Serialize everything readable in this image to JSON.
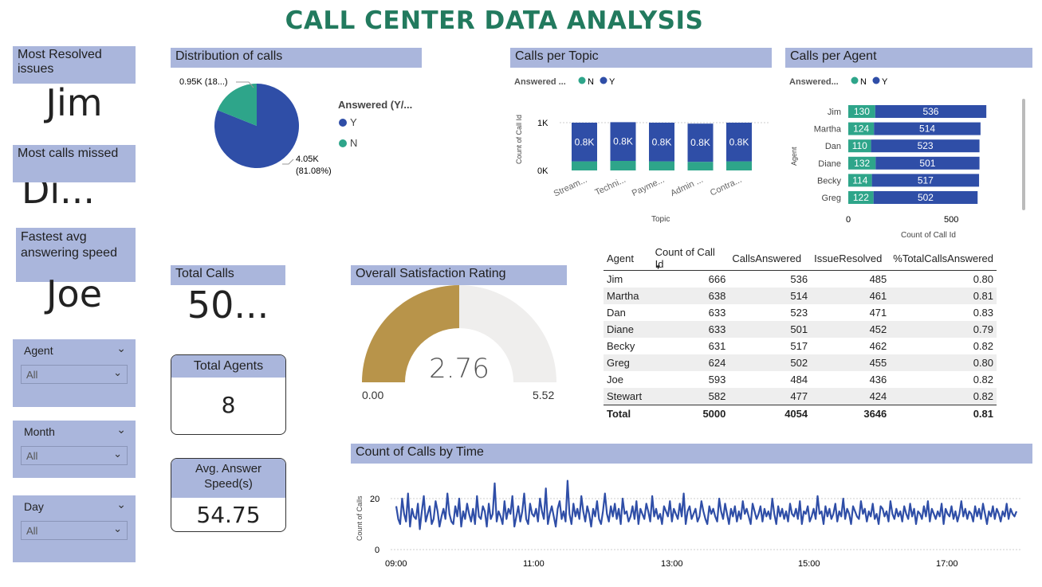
{
  "title": "CALL CENTER DATA ANALYSIS",
  "kpis": {
    "most_resolved_label": "Most Resolved issues",
    "most_resolved_value": "Jim",
    "most_missed_label": "Most calls missed",
    "most_missed_value": "Di...",
    "fastest_label": "Fastest avg answering speed",
    "fastest_value": "Joe",
    "total_calls_label": "Total Calls",
    "total_calls_value": "50...",
    "total_agents_label": "Total Agents",
    "total_agents_value": "8",
    "avg_speed_label": "Avg. Answer Speed(s)",
    "avg_speed_value": "54.75"
  },
  "slicers": [
    {
      "label": "Agent",
      "value": "All"
    },
    {
      "label": "Month",
      "value": "All"
    },
    {
      "label": "Day",
      "value": "All"
    }
  ],
  "colors": {
    "N": "#2ea58a",
    "Y": "#2f4ea7",
    "header": "#aab6dc",
    "title": "#227a5e",
    "gauge": "#b8944a"
  },
  "pie": {
    "title": "Distribution of calls",
    "legend_title": "Answered (Y/...",
    "legend": [
      "Y",
      "N"
    ],
    "label_n": "0.95K (18...)",
    "label_y": "4.05K",
    "label_y_pct": "(81.08%)"
  },
  "topic": {
    "title": "Calls per Topic",
    "legend_title": "Answered ...",
    "legend": [
      "N",
      "Y"
    ],
    "ylabel": "Count of Call Id",
    "xlabel": "Topic",
    "yticks": [
      "1K",
      "0K"
    ],
    "categories": [
      "Stream...",
      "Techni...",
      "Payme...",
      "Admin ...",
      "Contra..."
    ],
    "y_label": "0.8K"
  },
  "agent_chart": {
    "title": "Calls per Agent",
    "legend_title": "Answered...",
    "legend": [
      "N",
      "Y"
    ],
    "ylabel": "Agent",
    "xlabel": "Count of Call Id",
    "xticks": [
      "0",
      "500"
    ]
  },
  "gauge": {
    "title": "Overall Satisfaction Rating",
    "value": "2.76",
    "min": "0.00",
    "max": "5.52"
  },
  "table": {
    "columns": [
      "Agent",
      "Count of Call Id",
      "CallsAnswered",
      "IssueResolved",
      "%TotalCallsAnswered"
    ],
    "rows": [
      [
        "Jim",
        "666",
        "536",
        "485",
        "0.80"
      ],
      [
        "Martha",
        "638",
        "514",
        "461",
        "0.81"
      ],
      [
        "Dan",
        "633",
        "523",
        "471",
        "0.83"
      ],
      [
        "Diane",
        "633",
        "501",
        "452",
        "0.79"
      ],
      [
        "Becky",
        "631",
        "517",
        "462",
        "0.82"
      ],
      [
        "Greg",
        "624",
        "502",
        "455",
        "0.80"
      ],
      [
        "Joe",
        "593",
        "484",
        "436",
        "0.82"
      ],
      [
        "Stewart",
        "582",
        "477",
        "424",
        "0.82"
      ]
    ],
    "total": [
      "Total",
      "5000",
      "4054",
      "3646",
      "0.81"
    ]
  },
  "time_chart": {
    "title": "Count of Calls by Time",
    "ylabel": "Count of Calls",
    "yticks": [
      "20",
      "0"
    ],
    "xticks": [
      "09:00",
      "11:00",
      "13:00",
      "15:00",
      "17:00"
    ]
  },
  "chart_data": [
    {
      "type": "pie",
      "title": "Distribution of calls",
      "categories": [
        "Y",
        "N"
      ],
      "values": [
        4054,
        946
      ],
      "legend_title": "Answered (Y/..."
    },
    {
      "type": "bar",
      "title": "Calls per Topic",
      "categories": [
        "Stream...",
        "Techni...",
        "Payme...",
        "Admin ...",
        "Contra..."
      ],
      "series": [
        {
          "name": "N",
          "values": [
            190,
            200,
            190,
            180,
            190
          ]
        },
        {
          "name": "Y",
          "values": [
            810,
            810,
            810,
            800,
            810
          ]
        }
      ],
      "xlabel": "Topic",
      "ylabel": "Count of Call Id",
      "ylim": [
        0,
        1000
      ]
    },
    {
      "type": "bar",
      "title": "Calls per Agent",
      "categories": [
        "Jim",
        "Martha",
        "Dan",
        "Diane",
        "Becky",
        "Greg"
      ],
      "series": [
        {
          "name": "N",
          "values": [
            130,
            124,
            110,
            132,
            114,
            122
          ]
        },
        {
          "name": "Y",
          "values": [
            536,
            514,
            523,
            501,
            517,
            502
          ]
        }
      ],
      "xlabel": "Count of Call Id",
      "ylabel": "Agent",
      "xlim": [
        0,
        700
      ]
    },
    {
      "type": "line",
      "title": "Count of Calls by Time",
      "xlabel": "",
      "ylabel": "Count of Calls",
      "x_start": "09:00",
      "x_ticks": [
        "09:00",
        "11:00",
        "13:00",
        "15:00",
        "17:00"
      ],
      "ylim": [
        0,
        30
      ],
      "values": [
        17,
        12,
        10,
        20,
        14,
        11,
        22,
        9,
        16,
        13,
        12,
        18,
        8,
        15,
        21,
        11,
        14,
        17,
        10,
        12,
        19,
        15,
        9,
        13,
        16,
        12,
        22,
        14,
        11,
        10,
        17,
        13,
        20,
        9,
        15,
        12,
        18,
        14,
        11,
        16,
        10,
        21,
        13,
        12,
        17,
        15,
        9,
        18,
        12,
        14,
        26,
        11,
        15,
        13,
        10,
        19,
        12,
        16,
        14,
        21,
        9,
        13,
        17,
        11,
        15,
        22,
        12,
        10,
        18,
        14,
        13,
        16,
        11,
        20,
        15,
        12,
        24,
        10,
        14,
        17,
        13,
        9,
        16,
        19,
        12,
        15,
        11,
        27,
        14,
        10,
        18,
        13,
        16,
        12,
        21,
        15,
        11,
        17,
        14,
        9,
        16,
        13,
        19,
        12,
        10,
        15,
        22,
        14,
        11,
        17,
        13,
        18,
        12,
        16,
        10,
        20,
        14,
        15,
        11,
        13,
        17,
        12,
        19,
        10,
        16,
        14,
        12,
        18,
        15,
        11,
        21,
        13,
        16,
        12,
        14,
        10,
        17,
        15,
        13,
        19,
        11,
        16,
        14,
        12,
        18,
        13,
        22,
        10,
        15,
        17,
        12,
        14,
        16,
        11,
        13,
        19,
        15,
        12,
        10,
        17,
        14,
        16,
        13,
        11,
        20,
        15,
        12,
        18,
        14,
        10,
        16,
        13,
        17,
        11,
        15,
        12,
        19,
        14,
        16,
        13,
        10,
        18,
        15,
        12,
        14,
        17,
        11,
        16,
        13,
        15,
        12,
        20,
        14,
        10,
        17,
        13,
        16,
        12,
        15,
        11,
        18,
        14,
        13,
        16,
        12,
        19,
        10,
        15,
        14,
        17,
        11,
        13,
        16,
        12,
        21,
        14,
        15,
        10,
        17,
        13,
        16,
        12,
        14,
        18,
        11,
        15,
        13,
        20,
        12,
        16,
        14,
        10,
        17,
        15,
        13,
        12,
        19,
        14,
        16,
        11,
        15,
        13,
        18,
        12,
        14,
        10,
        17,
        16,
        13,
        15,
        11,
        19,
        14,
        12,
        16,
        13,
        15,
        11,
        17,
        14,
        12,
        18,
        13,
        16,
        10,
        15,
        14,
        12,
        17,
        13,
        19,
        11,
        16,
        14,
        12,
        15,
        13,
        18,
        10,
        16,
        14,
        13,
        17,
        12,
        15,
        11,
        14,
        19,
        13,
        16,
        12,
        15,
        14,
        11,
        17,
        13,
        16,
        12,
        18,
        14,
        10,
        15,
        13,
        17,
        12,
        16,
        14,
        11,
        15,
        13,
        18,
        12,
        16,
        14,
        13,
        15
      ]
    }
  ]
}
